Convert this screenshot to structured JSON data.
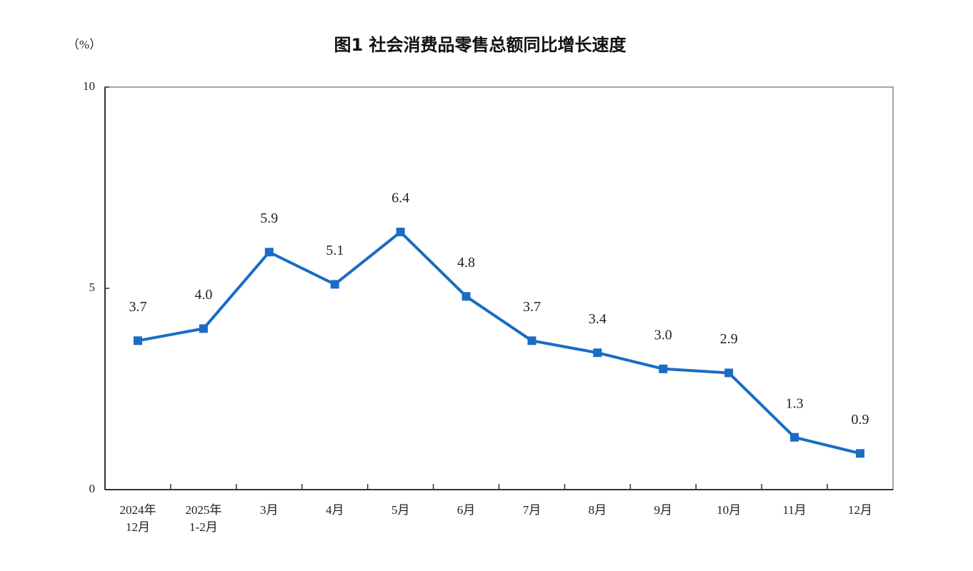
{
  "chart_data": {
    "type": "line",
    "title": "图1  社会消费品零售总额同比增长速度",
    "y_label": "（%）",
    "categories": [
      "2024年\n12月",
      "2025年\n1-2月",
      "3月",
      "4月",
      "5月",
      "6月",
      "7月",
      "8月",
      "9月",
      "10月",
      "11月",
      "12月"
    ],
    "series": [
      {
        "name": "社会消费品零售总额同比增长速度",
        "color": "#1a6cc4",
        "values": [
          3.7,
          4.0,
          5.9,
          5.1,
          6.4,
          4.8,
          3.7,
          3.4,
          3.0,
          2.9,
          1.3,
          0.9
        ],
        "value_labels": [
          "3.7",
          "4.0",
          "5.9",
          "5.1",
          "6.4",
          "4.8",
          "3.7",
          "3.4",
          "3.0",
          "2.9",
          "1.3",
          "0.9"
        ]
      }
    ],
    "ylim": [
      0,
      10
    ],
    "yticks": [
      0,
      5,
      10
    ],
    "grid": false
  }
}
